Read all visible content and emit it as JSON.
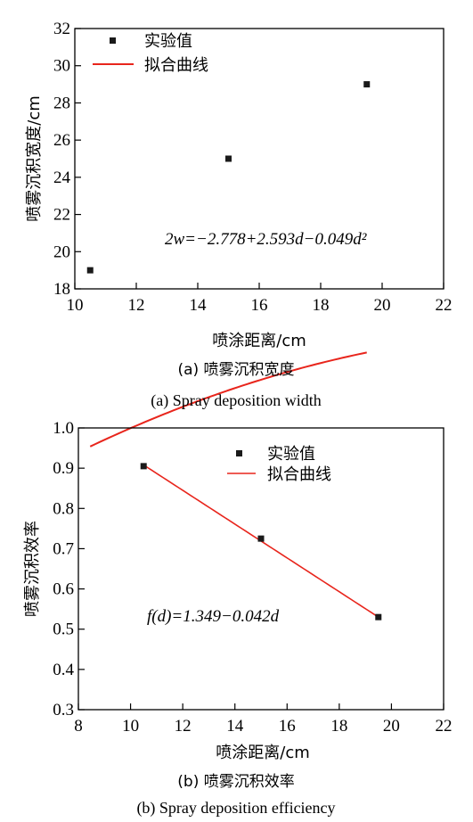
{
  "chart_data": [
    {
      "type": "scatter",
      "xlabel": "喷涂距离/cm",
      "ylabel": "喷雾沉积宽度/cm",
      "xlim": [
        10,
        22
      ],
      "ylim": [
        18,
        32
      ],
      "xticks": [
        10,
        12,
        14,
        16,
        18,
        20,
        22
      ],
      "yticks": [
        18,
        20,
        22,
        24,
        26,
        28,
        30,
        32
      ],
      "series": [
        {
          "name": "实验值",
          "kind": "points",
          "x": [
            10.5,
            15,
            19.5
          ],
          "y": [
            19,
            25,
            29
          ],
          "color": "#1a1a1a"
        },
        {
          "name": "拟合曲线",
          "kind": "fit-quadratic",
          "coeffs": [
            -2.778,
            2.593,
            -0.049
          ],
          "divisor": 2,
          "x_range": [
            10.5,
            19.5
          ],
          "color": "#e8251c"
        }
      ],
      "equation": "2w=−2.778+2.593d−0.049d²",
      "legend_position": "top-left",
      "caption_zh": "(a) 喷雾沉积宽度",
      "caption_en": "(a) Spray deposition width"
    },
    {
      "type": "scatter",
      "xlabel": "喷涂距离/cm",
      "ylabel": "喷雾沉积效率",
      "xlim": [
        8,
        22
      ],
      "ylim": [
        0.3,
        1.0
      ],
      "xticks": [
        8,
        10,
        12,
        14,
        16,
        18,
        20,
        22
      ],
      "yticks": [
        0.3,
        0.4,
        0.5,
        0.6,
        0.7,
        0.8,
        0.9,
        1.0
      ],
      "series": [
        {
          "name": "实验值",
          "kind": "points",
          "x": [
            10.5,
            15,
            19.5
          ],
          "y": [
            0.905,
            0.725,
            0.53
          ],
          "color": "#1a1a1a"
        },
        {
          "name": "拟合曲线",
          "kind": "fit-linear",
          "coeffs": [
            1.349,
            -0.042
          ],
          "divisor": 1,
          "x_range": [
            10.5,
            19.5
          ],
          "color": "#e8251c"
        }
      ],
      "equation": "f(d)=1.349−0.042d",
      "legend_position": "top-right",
      "caption_zh": "(b) 喷雾沉积效率",
      "caption_en": "(b) Spray deposition efficiency"
    }
  ]
}
